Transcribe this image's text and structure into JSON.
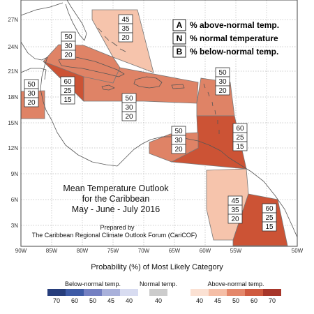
{
  "map": {
    "x_ticks": [
      "90W",
      "85W",
      "80W",
      "75W",
      "70W",
      "65W",
      "60W",
      "55W",
      "50W"
    ],
    "y_ticks": [
      "27N",
      "24N",
      "21N",
      "18N",
      "15N",
      "12N",
      "9N",
      "6N",
      "3N"
    ],
    "key": [
      {
        "letter": "A",
        "desc": "% above-normal temp."
      },
      {
        "letter": "N",
        "desc": "% normal temperature"
      },
      {
        "letter": "B",
        "desc": "% below-normal temp."
      }
    ],
    "title_lines": [
      "Mean Temperature Outlook",
      "for the Caribbean",
      "May - June - July 2016"
    ],
    "credit_lines": [
      "Prepared by",
      "The Caribbean Regional Climate Outlook Forum (CariCOF)"
    ],
    "prob_boxes": [
      {
        "id": "bahamas",
        "values": [
          "45",
          "35",
          "20"
        ]
      },
      {
        "id": "cuba",
        "values": [
          "50",
          "30",
          "20"
        ]
      },
      {
        "id": "belize",
        "values": [
          "50",
          "30",
          "20"
        ]
      },
      {
        "id": "jamaica",
        "values": [
          "60",
          "25",
          "15"
        ]
      },
      {
        "id": "hispaniola",
        "values": [
          "50",
          "30",
          "20"
        ]
      },
      {
        "id": "leeward",
        "values": [
          "50",
          "30",
          "20"
        ]
      },
      {
        "id": "abc-islands",
        "values": [
          "50",
          "30",
          "20"
        ]
      },
      {
        "id": "windward",
        "values": [
          "60",
          "25",
          "15"
        ]
      },
      {
        "id": "guyana",
        "values": [
          "45",
          "35",
          "20"
        ]
      },
      {
        "id": "suriname",
        "values": [
          "60",
          "25",
          "15"
        ]
      }
    ],
    "fill_colors": {
      "c45": "#f6c4ac",
      "c50": "#df8366",
      "c60": "#cc5335",
      "c70": "#a8372b"
    }
  },
  "legend": {
    "title": "Probability (%) of Most Likely Category",
    "below": {
      "label": "Below-normal temp.",
      "values": [
        "70",
        "60",
        "50",
        "45",
        "40"
      ],
      "colors": [
        "#273e7c",
        "#3e5ba6",
        "#7480c2",
        "#a9b1db",
        "#d8dcf1"
      ]
    },
    "normal": {
      "label": "Normal temp.",
      "values": [
        "40"
      ],
      "colors": [
        "#cccccc"
      ]
    },
    "above": {
      "label": "Above-normal temp.",
      "values": [
        "40",
        "45",
        "50",
        "60",
        "70"
      ],
      "colors": [
        "#fbe1d3",
        "#f5bea6",
        "#e4876a",
        "#cf5a3f",
        "#a7362a"
      ]
    }
  }
}
